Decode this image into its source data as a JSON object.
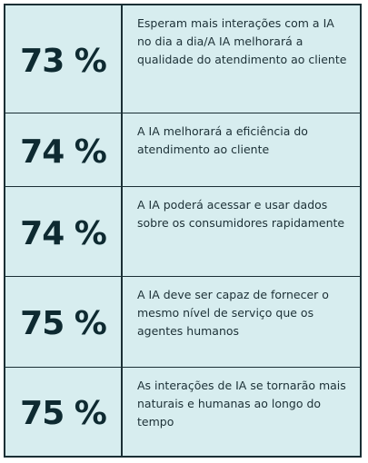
{
  "stats": [
    {
      "value": "73 %",
      "text": "Esperam mais interações com a IA no dia a dia/A IA melhorará a qualidade do atendimento ao cliente"
    },
    {
      "value": "74 %",
      "text": "A IA melhorará a eficiência do atendimento ao cliente"
    },
    {
      "value": "74 %",
      "text": "A IA poderá acessar e usar dados sobre os consumidores rapidamente"
    },
    {
      "value": "75 %",
      "text": "A IA deve ser capaz de fornecer o mesmo nível de serviço que os agentes humanos"
    },
    {
      "value": "75 %",
      "text": "As interações de IA se tornarão mais naturais e humanas ao longo do tempo"
    }
  ],
  "colors": {
    "background": "#d7edef",
    "text_dark": "#0e2a31",
    "border": "#1a2f35"
  }
}
